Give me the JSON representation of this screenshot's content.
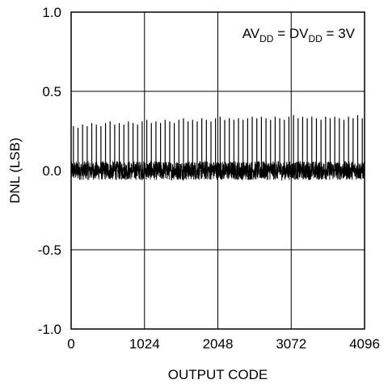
{
  "chart_data": {
    "type": "line",
    "title": "",
    "xlabel": "OUTPUT CODE",
    "ylabel": "DNL (LSB)",
    "xlim": [
      0,
      4096
    ],
    "ylim": [
      -1.0,
      1.0
    ],
    "x_ticks": [
      "0",
      "1024",
      "2048",
      "3072",
      "4096"
    ],
    "y_ticks": [
      "1.0",
      "0.5",
      "0.0",
      "-0.5",
      "-1.0"
    ],
    "grid": true,
    "annotation": {
      "parts": [
        {
          "text": "AV",
          "sub": false
        },
        {
          "text": "DD",
          "sub": true
        },
        {
          "text": " = DV",
          "sub": false
        },
        {
          "text": "DD",
          "sub": true
        },
        {
          "text": " = 3V",
          "sub": false
        }
      ]
    },
    "series": [
      {
        "description_period_codes": 64,
        "baseline_noise_range": [
          -0.06,
          0.06
        ],
        "periodic_spike_values": [
          0.28,
          0.27,
          0.29,
          0.28,
          0.3,
          0.29,
          0.28,
          0.3,
          0.31,
          0.29,
          0.3,
          0.29,
          0.31,
          0.3,
          0.29,
          0.31,
          0.32,
          0.3,
          0.31,
          0.3,
          0.32,
          0.31,
          0.3,
          0.32,
          0.33,
          0.31,
          0.32,
          0.31,
          0.33,
          0.32,
          0.31,
          0.33,
          0.34,
          0.32,
          0.33,
          0.32,
          0.33,
          0.32,
          0.33,
          0.34,
          0.33,
          0.34,
          0.33,
          0.32,
          0.34,
          0.33,
          0.32,
          0.34,
          0.35,
          0.33,
          0.34,
          0.33,
          0.34,
          0.33,
          0.32,
          0.34,
          0.33,
          0.34,
          0.33,
          0.32,
          0.34,
          0.33,
          0.35,
          0.33
        ]
      }
    ]
  }
}
